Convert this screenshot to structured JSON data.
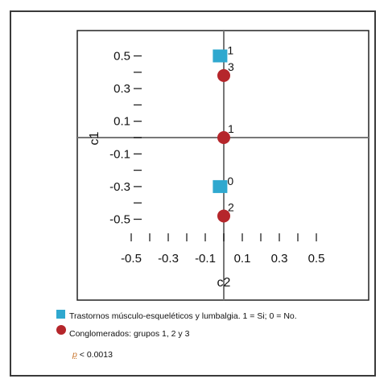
{
  "chart_data": {
    "type": "scatter",
    "xlabel": "c2",
    "ylabel": "c1",
    "xlim": [
      -0.6,
      0.6
    ],
    "ylim": [
      -0.6,
      0.6
    ],
    "x_ticks": [
      "-0.5",
      "-0.3",
      "-0.1",
      "0.1",
      "0.3",
      "0.5"
    ],
    "y_ticks": [
      "0.5",
      "0.3",
      "0.1",
      "-0.1",
      "-0.3",
      "-0.5"
    ],
    "x_tick_values": [
      -0.5,
      -0.3,
      -0.1,
      0.1,
      0.3,
      0.5
    ],
    "y_tick_values": [
      0.5,
      0.3,
      0.1,
      -0.1,
      -0.3,
      -0.5
    ],
    "reference_lines": {
      "x": 0,
      "y": 0
    },
    "series": [
      {
        "marker": "square",
        "color": "#2fa8cf",
        "points": [
          {
            "x": -0.02,
            "y": 0.5,
            "label": "1"
          },
          {
            "x": -0.02,
            "y": -0.3,
            "label": "0"
          }
        ]
      },
      {
        "marker": "circle",
        "color": "#b5262b",
        "points": [
          {
            "x": 0.0,
            "y": 0.38,
            "label": "3"
          },
          {
            "x": 0.0,
            "y": 0.0,
            "label": "1"
          },
          {
            "x": 0.0,
            "y": -0.48,
            "label": "2"
          }
        ]
      }
    ]
  },
  "legend": {
    "item1": "Trastornos músculo-esqueléticos y lumbalgia. 1 = Si; 0 = No.",
    "item2": "Conglomerados: grupos 1, 2 y 3",
    "p_symbol": "p",
    "p_value": "< 0.0013"
  }
}
